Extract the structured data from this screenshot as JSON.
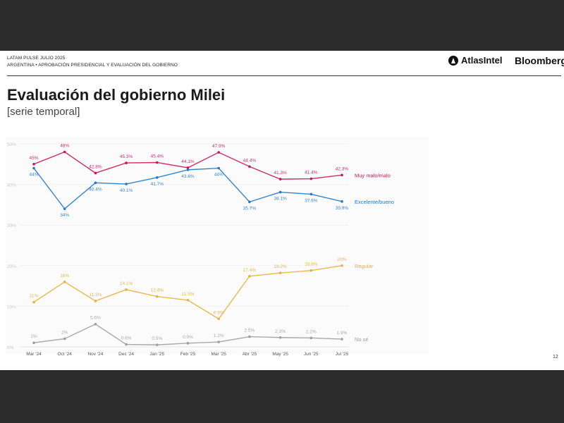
{
  "header": {
    "line1": "LATAM PULSE JULIO 2025",
    "line2": "ARGENTINA • APROBACIÓN PRESIDENCIAL Y EVALUACIÓN DEL GOBIERNO",
    "brand_atlas": "AtlasIntel",
    "brand_bloomberg": "Bloomberg"
  },
  "title": "Evaluación del gobierno Milei",
  "subtitle": "[serie temporal]",
  "page_number": "12",
  "chart_data": {
    "type": "line",
    "x": [
      "Mar '24",
      "Oct '24",
      "Nov '24",
      "Dec '24",
      "Jan '25",
      "Feb '25",
      "Mar '25",
      "Abr '25",
      "May '25",
      "Jun '25",
      "Jul '25"
    ],
    "ylim": [
      0,
      50
    ],
    "yticks": [
      "0%",
      "10%",
      "20%",
      "30%",
      "40%",
      "50%"
    ],
    "grid": true,
    "series": [
      {
        "name": "Muy malo/malo",
        "color": "#c2185b",
        "values": [
          45,
          48,
          42.8,
          45.3,
          45.4,
          44.1,
          47.9,
          44.4,
          41.3,
          41.4,
          42.3
        ],
        "labels": [
          "45%",
          "48%",
          "42.8%",
          "45.3%",
          "45.4%",
          "44.1%",
          "47.9%",
          "44.4%",
          "41.3%",
          "41.4%",
          "42.3%"
        ]
      },
      {
        "name": "Excelente/bueno",
        "color": "#1f78c8",
        "values": [
          44,
          34,
          40.4,
          40.1,
          41.7,
          43.6,
          44,
          35.7,
          38.1,
          37.6,
          35.8
        ],
        "labels": [
          "44%",
          "34%",
          "40.4%",
          "40.1%",
          "41.7%",
          "43.6%",
          "44%",
          "35.7%",
          "38.1%",
          "37.6%",
          "35.8%"
        ]
      },
      {
        "name": "Regular",
        "color": "#e3b23c",
        "values": [
          11,
          16,
          11.3,
          14.1,
          12.4,
          11.5,
          6.9,
          17.4,
          18.2,
          18.8,
          20
        ],
        "labels": [
          "11%",
          "16%",
          "11.3%",
          "14.1%",
          "12.4%",
          "11.5%",
          "6.9%",
          "17.4%",
          "18.2%",
          "18.8%",
          "20%"
        ]
      },
      {
        "name": "No sé",
        "color": "#9e9e9e",
        "values": [
          1,
          2,
          5.6,
          0.6,
          0.5,
          0.9,
          1.2,
          2.5,
          2.3,
          2.2,
          1.9
        ],
        "labels": [
          "1%",
          "2%",
          "5.6%",
          "0.6%",
          "0.5%",
          "0.9%",
          "1.2%",
          "2.5%",
          "2.3%",
          "2.2%",
          "1.9%"
        ]
      }
    ]
  }
}
